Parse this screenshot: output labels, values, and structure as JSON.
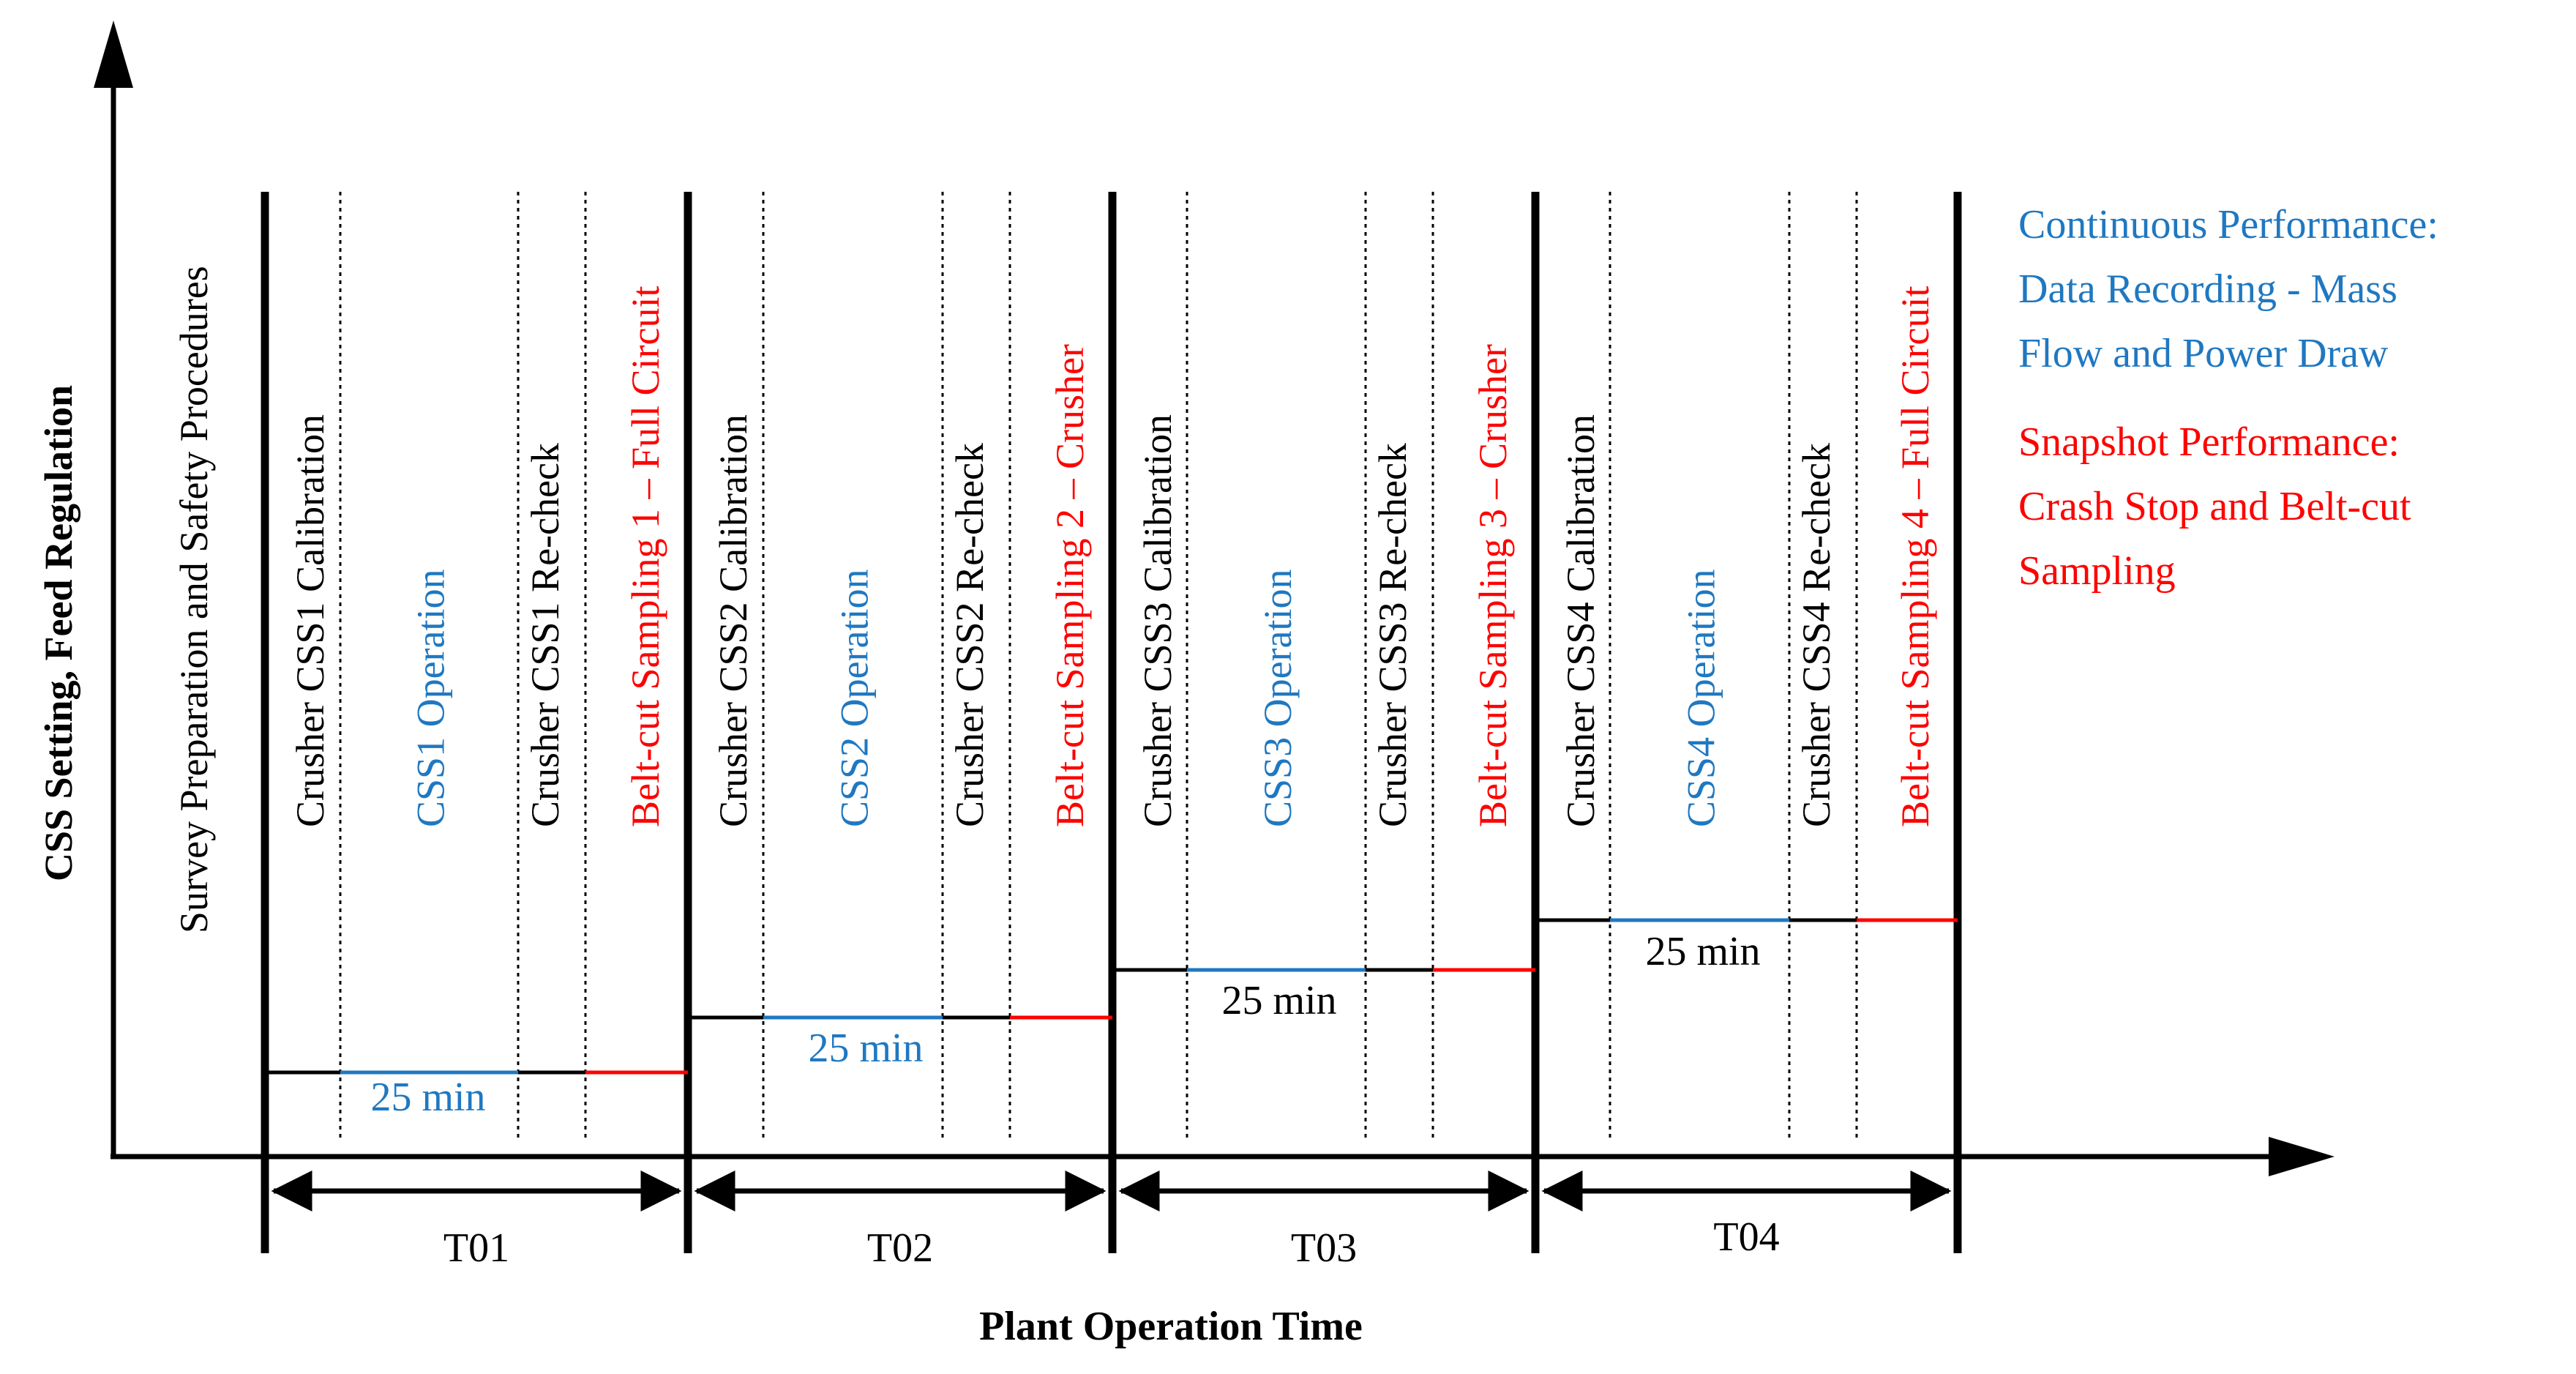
{
  "y_axis_label": "CSS Setting, Feed Regulation",
  "x_axis_label": "Plant Operation Time",
  "survey_prep_label": "Survey Preparation and Safety Procedures",
  "colors": {
    "black": "#000000",
    "blue": "#1f78c1",
    "red": "#ff0000"
  },
  "trials": [
    {
      "id": "T01",
      "calibration": "Crusher CSS1 Calibration",
      "operation": "CSS1 Operation",
      "recheck": "Crusher CSS1 Re-check",
      "sampling": "Belt-cut Sampling 1 – Full Circuit",
      "duration": "25 min"
    },
    {
      "id": "T02",
      "calibration": "Crusher CSS2 Calibration",
      "operation": "CSS2 Operation",
      "recheck": "Crusher CSS2 Re-check",
      "sampling": "Belt-cut Sampling 2 – Crusher",
      "duration": "25 min"
    },
    {
      "id": "T03",
      "calibration": "Crusher CSS3 Calibration",
      "operation": "CSS3 Operation",
      "recheck": "Crusher CSS3 Re-check",
      "sampling": "Belt-cut Sampling 3 – Crusher",
      "duration": "25 min"
    },
    {
      "id": "T04",
      "calibration": "Crusher CSS4 Calibration",
      "operation": "CSS4 Operation",
      "recheck": "Crusher CSS4 Re-check",
      "sampling": "Belt-cut Sampling 4 – Full Circuit",
      "duration": "25 min"
    }
  ],
  "legend": {
    "continuous": [
      "Continuous Performance:",
      "Data Recording - Mass",
      "Flow and Power Draw"
    ],
    "snapshot": [
      "Snapshot Performance:",
      "Crash Stop and Belt-cut",
      "Sampling"
    ]
  }
}
